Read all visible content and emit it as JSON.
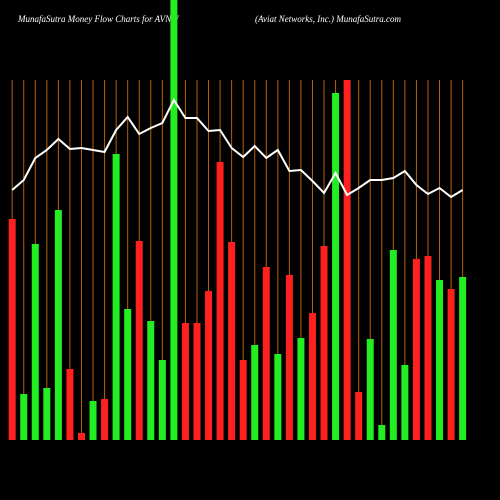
{
  "chart_data": {
    "type": "bar",
    "title": "MunafaSutra  Money Flow  Charts for AVNW",
    "subtitle": "(Aviat Networks,  Inc.) MunafaSutra.com",
    "categories": [
      null,
      null,
      null,
      null,
      null,
      null,
      null,
      null,
      null,
      null,
      null,
      null,
      null,
      null,
      null,
      null,
      null,
      null,
      null,
      null,
      null,
      null,
      null,
      null,
      null,
      null,
      null,
      null,
      null,
      null,
      null,
      null,
      null,
      null,
      null,
      null,
      null,
      null,
      null,
      null
    ],
    "values": [
      221,
      46,
      196,
      52,
      230,
      71,
      7,
      39,
      41,
      286,
      131,
      199,
      119,
      80,
      440,
      117,
      117,
      149,
      278,
      198,
      80,
      95,
      173,
      86,
      165,
      102,
      127,
      194,
      347,
      360,
      48,
      101,
      15,
      190,
      75,
      181,
      184,
      160,
      151,
      163
    ],
    "colors": [
      "#ff2020",
      "#22ee22",
      "#22ee22",
      "#22ee22",
      "#22ee22",
      "#ff2020",
      "#ff2020",
      "#22ee22",
      "#ff2020",
      "#22ee22",
      "#22ee22",
      "#ff2020",
      "#22ee22",
      "#22ee22",
      "#22ee22",
      "#ff2020",
      "#ff2020",
      "#ff2020",
      "#ff2020",
      "#ff2020",
      "#ff2020",
      "#22ee22",
      "#ff2020",
      "#22ee22",
      "#ff2020",
      "#22ee22",
      "#ff2020",
      "#ff2020",
      "#22ee22",
      "#ff2020",
      "#ff2020",
      "#22ee22",
      "#22ee22",
      "#22ee22",
      "#22ee22",
      "#ff2020",
      "#ff2020",
      "#22ee22",
      "#ff2020",
      "#22ee22"
    ],
    "line": {
      "color": "#ffffff",
      "values": [
        250,
        260,
        282,
        290,
        301,
        291,
        292,
        290,
        288,
        310,
        323,
        306,
        312,
        317,
        340,
        322,
        322,
        309,
        310,
        292,
        283,
        294,
        282,
        290,
        269,
        270,
        259,
        247,
        267,
        245,
        252,
        260,
        260,
        262,
        269,
        255,
        246,
        252,
        243,
        250
      ]
    },
    "grid_color": "#b8610a",
    "ylim": [
      0,
      440
    ]
  }
}
